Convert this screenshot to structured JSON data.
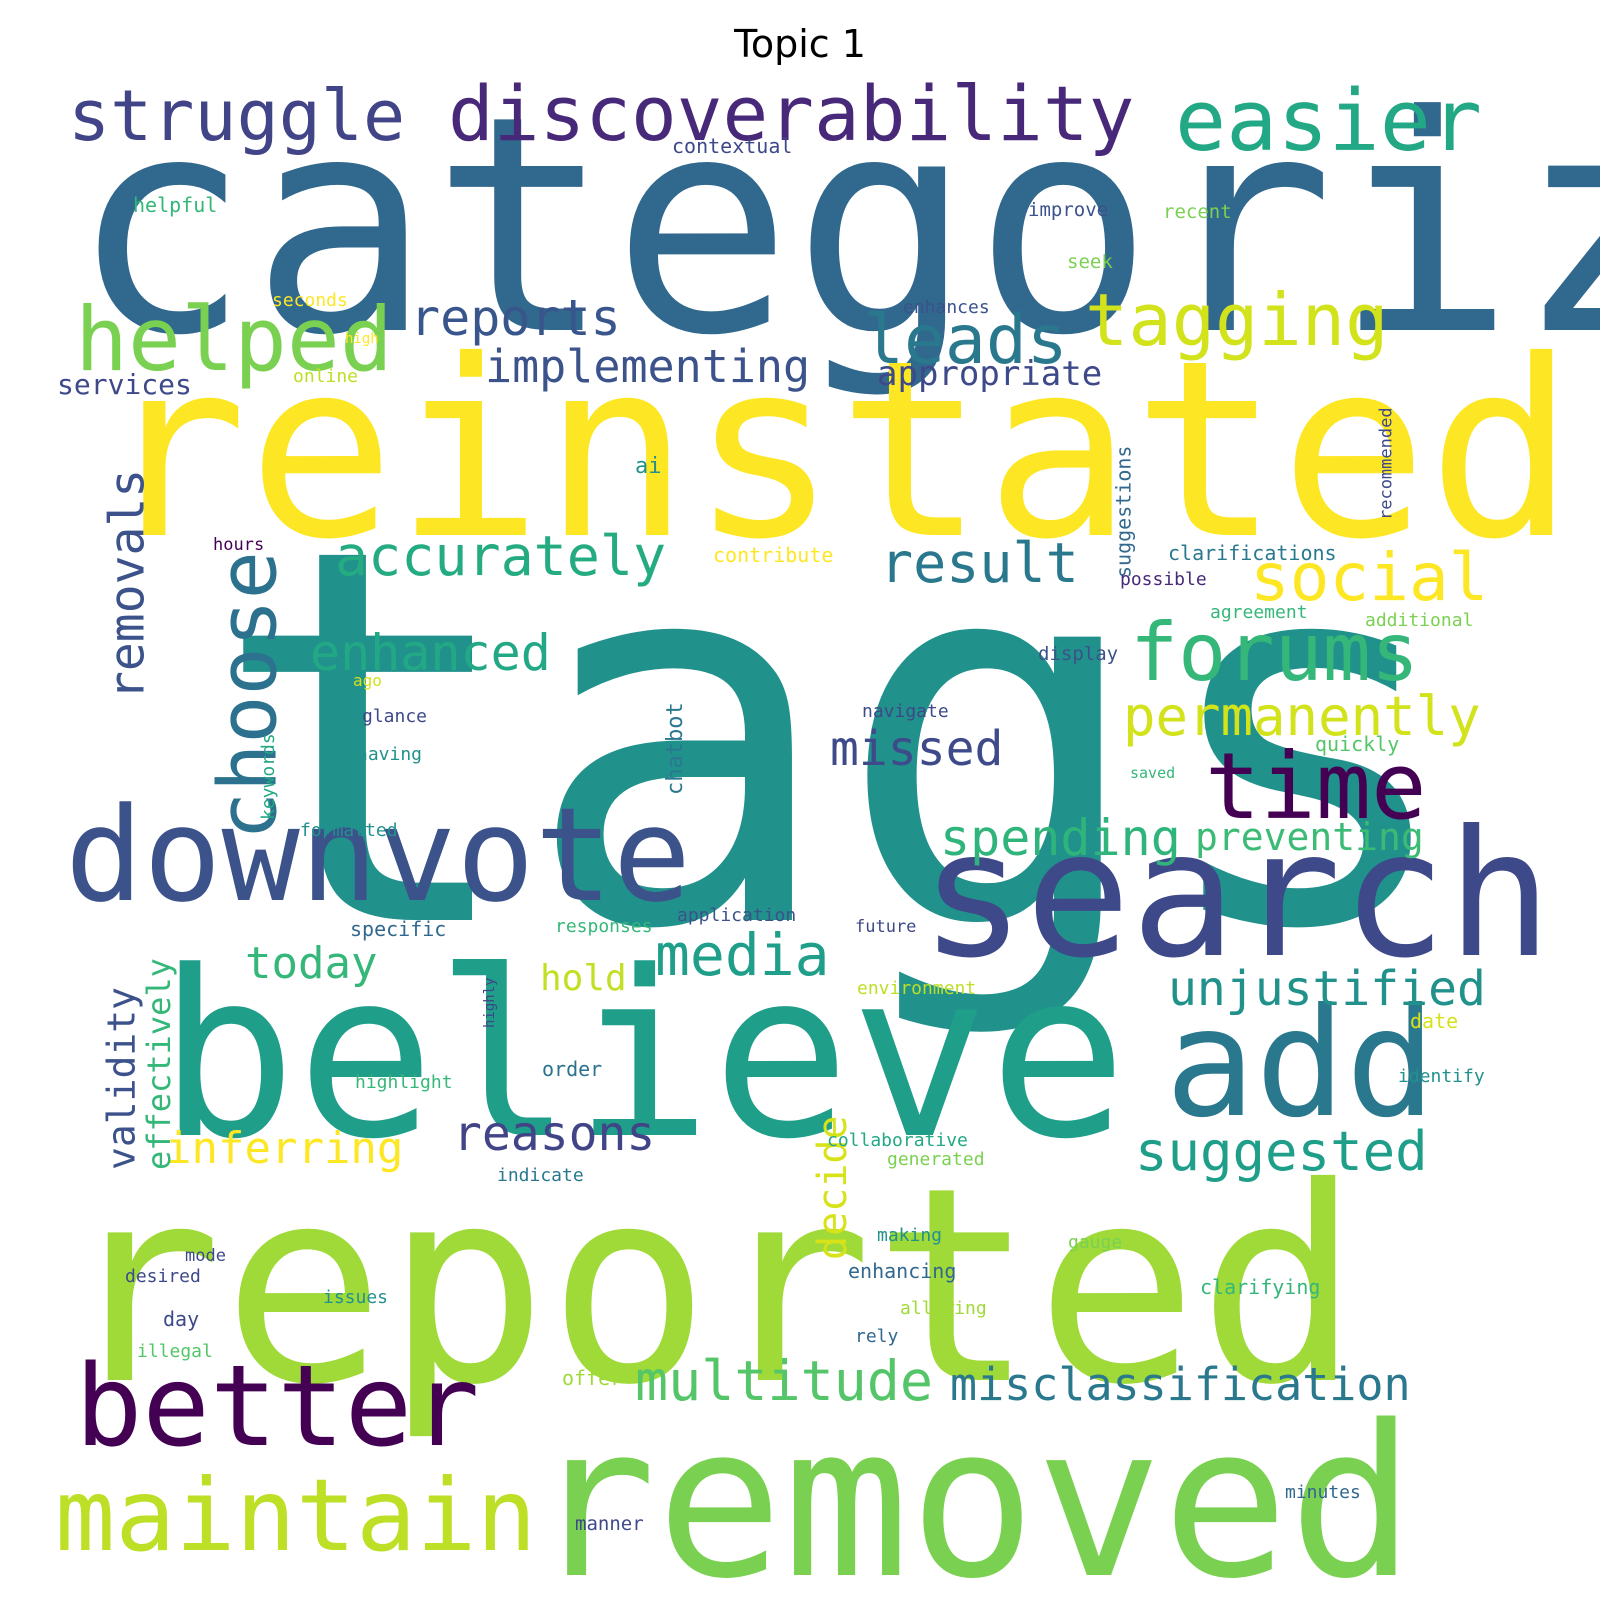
{
  "title": "Topic 1",
  "words": [
    {
      "text": "tags",
      "color": "#21918c"
    },
    {
      "text": "categorize",
      "color": "#31688e"
    },
    {
      "text": "reinstated",
      "color": "#fde725"
    },
    {
      "text": "reported",
      "color": "#a0da39"
    },
    {
      "text": "removed",
      "color": "#7ad151"
    },
    {
      "text": "believe",
      "color": "#1f9e89"
    },
    {
      "text": "search",
      "color": "#3e4989"
    },
    {
      "text": "downvote",
      "color": "#3b528b"
    },
    {
      "text": "add",
      "color": "#2a788e"
    },
    {
      "text": "better",
      "color": "#440154"
    },
    {
      "text": "maintain",
      "color": "#bddf26"
    },
    {
      "text": "discoverability",
      "color": "#482878"
    },
    {
      "text": "struggle",
      "color": "#414487"
    },
    {
      "text": "easier",
      "color": "#22a884"
    },
    {
      "text": "helped",
      "color": "#7ad151"
    },
    {
      "text": "tagging",
      "color": "#d2e21b"
    },
    {
      "text": "leads",
      "color": "#2a788e"
    },
    {
      "text": "reports",
      "color": "#39568c"
    },
    {
      "text": "time",
      "color": "#440154"
    },
    {
      "text": "forums",
      "color": "#35b779"
    },
    {
      "text": "social",
      "color": "#fde725"
    },
    {
      "text": "choose",
      "color": "#2c728e"
    },
    {
      "text": "permanently",
      "color": "#d2e21b"
    },
    {
      "text": "multitude",
      "color": "#54c568"
    },
    {
      "text": "misclassification",
      "color": "#2a788e"
    },
    {
      "text": "accurately",
      "color": "#25ab82"
    },
    {
      "text": "result",
      "color": "#2a788e"
    },
    {
      "text": "implementing",
      "color": "#3b528b"
    },
    {
      "text": "enhanced",
      "color": "#22a884"
    },
    {
      "text": "missed",
      "color": "#3e4a89"
    },
    {
      "text": "spending",
      "color": "#2fb47c"
    },
    {
      "text": "preventing",
      "color": "#3bbb75"
    },
    {
      "text": "unjustified",
      "color": "#21918c"
    },
    {
      "text": "suggested",
      "color": "#1f9e89"
    },
    {
      "text": "reasons",
      "color": "#414487"
    },
    {
      "text": "inferring",
      "color": "#fde725"
    },
    {
      "text": "media",
      "color": "#1f9e89"
    },
    {
      "text": "today",
      "color": "#35b779"
    },
    {
      "text": "removals",
      "color": "#3b528b"
    },
    {
      "text": "validity",
      "color": "#3b528b"
    },
    {
      "text": "effectively",
      "color": "#35b779"
    },
    {
      "text": "decide",
      "color": "#d8e219"
    },
    {
      "text": "hold",
      "color": "#c2df23"
    },
    {
      "text": "appropriate",
      "color": "#3e4989"
    },
    {
      "text": "services",
      "color": "#3e4989"
    },
    {
      "text": "contextual",
      "color": "#3e4989"
    },
    {
      "text": "helpful",
      "color": "#35b779"
    },
    {
      "text": "improve",
      "color": "#3b528b"
    },
    {
      "text": "recent",
      "color": "#7ad151"
    },
    {
      "text": "seek",
      "color": "#7ad151"
    },
    {
      "text": "seconds",
      "color": "#fde725"
    },
    {
      "text": "high",
      "color": "#fde725"
    },
    {
      "text": "online",
      "color": "#bddf26"
    },
    {
      "text": "enhances",
      "color": "#3b528b"
    },
    {
      "text": "ai",
      "color": "#21918c"
    },
    {
      "text": "suggestions",
      "color": "#31688e"
    },
    {
      "text": "recommended",
      "color": "#3e4989"
    },
    {
      "text": "hours",
      "color": "#440154"
    },
    {
      "text": "contribute",
      "color": "#fde725"
    },
    {
      "text": "clarifications",
      "color": "#2a788e"
    },
    {
      "text": "possible",
      "color": "#482878"
    },
    {
      "text": "agreement",
      "color": "#35b779"
    },
    {
      "text": "additional",
      "color": "#7ad151"
    },
    {
      "text": "display",
      "color": "#3b528b"
    },
    {
      "text": "ago",
      "color": "#d2e21b"
    },
    {
      "text": "glance",
      "color": "#3e4989"
    },
    {
      "text": "navigate",
      "color": "#3e4989"
    },
    {
      "text": "having",
      "color": "#21918c"
    },
    {
      "text": "chatbot",
      "color": "#2a788e"
    },
    {
      "text": "quickly",
      "color": "#54c568"
    },
    {
      "text": "keywords",
      "color": "#22a884"
    },
    {
      "text": "saved",
      "color": "#35b779"
    },
    {
      "text": "formatted",
      "color": "#21918c"
    },
    {
      "text": "specific",
      "color": "#31688e"
    },
    {
      "text": "responses",
      "color": "#35b779"
    },
    {
      "text": "application",
      "color": "#3b528b"
    },
    {
      "text": "future",
      "color": "#3e4989"
    },
    {
      "text": "environment",
      "color": "#bddf26"
    },
    {
      "text": "highly",
      "color": "#414487"
    },
    {
      "text": "date",
      "color": "#d8e219"
    },
    {
      "text": "order",
      "color": "#2c728e"
    },
    {
      "text": "highlight",
      "color": "#35b779"
    },
    {
      "text": "identify",
      "color": "#21918c"
    },
    {
      "text": "collaborative",
      "color": "#22a884"
    },
    {
      "text": "generated",
      "color": "#7ad151"
    },
    {
      "text": "indicate",
      "color": "#2a788e"
    },
    {
      "text": "making",
      "color": "#21918c"
    },
    {
      "text": "gauge",
      "color": "#7ad151"
    },
    {
      "text": "mode",
      "color": "#3e4989"
    },
    {
      "text": "desired",
      "color": "#3e4989"
    },
    {
      "text": "enhancing",
      "color": "#31688e"
    },
    {
      "text": "issues",
      "color": "#21918c"
    },
    {
      "text": "clarifying",
      "color": "#35b779"
    },
    {
      "text": "allowing",
      "color": "#a0da39"
    },
    {
      "text": "day",
      "color": "#3e4989"
    },
    {
      "text": "rely",
      "color": "#31688e"
    },
    {
      "text": "illegal",
      "color": "#54c568"
    },
    {
      "text": "offer",
      "color": "#a0da39"
    },
    {
      "text": "manner",
      "color": "#3e4989"
    },
    {
      "text": "minutes",
      "color": "#31688e"
    }
  ]
}
